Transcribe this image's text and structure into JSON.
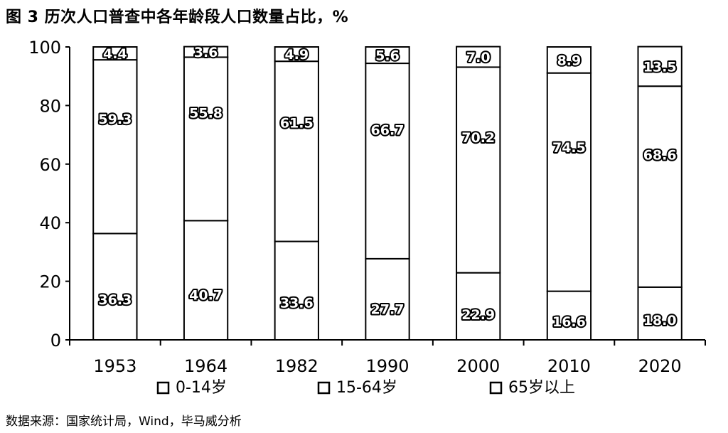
{
  "figure": {
    "title": "图 3 历次人口普查中各年龄段人口数量占比，%",
    "source": "数据来源：国家统计局，Wind，毕马威分析"
  },
  "chart_data": {
    "type": "bar",
    "stacked": true,
    "title": "图 3 历次人口普查中各年龄段人口数量占比，%",
    "xlabel": "",
    "ylabel": "",
    "ylim": [
      0,
      100
    ],
    "yticks": [
      0,
      20,
      40,
      60,
      80,
      100
    ],
    "categories": [
      "1953",
      "1964",
      "1982",
      "1990",
      "2000",
      "2010",
      "2020"
    ],
    "series": [
      {
        "name": "0-14岁",
        "values": [
          36.3,
          40.7,
          33.6,
          27.7,
          22.9,
          16.6,
          18.0
        ],
        "labels": [
          "36.3",
          "40.7",
          "33.6",
          "27.7",
          "22.9",
          "16.6",
          "18.0"
        ],
        "color": "#ffffff"
      },
      {
        "name": "15-64岁",
        "values": [
          59.3,
          55.8,
          61.5,
          66.7,
          70.2,
          74.5,
          68.6
        ],
        "labels": [
          "59.3",
          "55.8",
          "61.5",
          "66.7",
          "70.2",
          "74.5",
          "68.6"
        ],
        "color": "#ffffff"
      },
      {
        "name": "65岁以上",
        "values": [
          4.4,
          3.6,
          4.9,
          5.6,
          7.0,
          8.9,
          13.5
        ],
        "labels": [
          "4.4",
          "3.6",
          "4.9",
          "5.6",
          "7.0",
          "8.9",
          "13.5"
        ],
        "color": "#ffffff"
      }
    ],
    "legend_position": "bottom"
  }
}
